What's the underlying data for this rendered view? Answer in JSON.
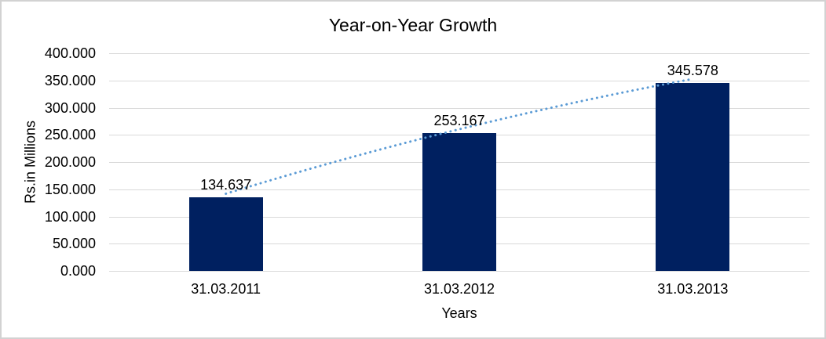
{
  "chart_data": {
    "type": "bar",
    "title": "Year-on-Year Growth",
    "categories": [
      "31.03.2011",
      "31.03.2012",
      "31.03.2013"
    ],
    "values": [
      134.637,
      253.167,
      345.578
    ],
    "data_labels": [
      "134.637",
      "253.167",
      "345.578"
    ],
    "xlabel": "Years",
    "ylabel": "Rs.in Millions",
    "ylim": [
      0,
      400
    ],
    "ytick_step": 50,
    "ytick_labels": [
      "400.000",
      "350.000",
      "300.000",
      "250.000",
      "200.000",
      "150.000",
      "100.000",
      "50.000",
      "0.000"
    ],
    "grid": true,
    "legend_position": "none",
    "bar_color": "#002060",
    "gridline_color": "#d9d9d9",
    "trendline": {
      "style": "dotted",
      "color": "#5b9bd5"
    }
  }
}
